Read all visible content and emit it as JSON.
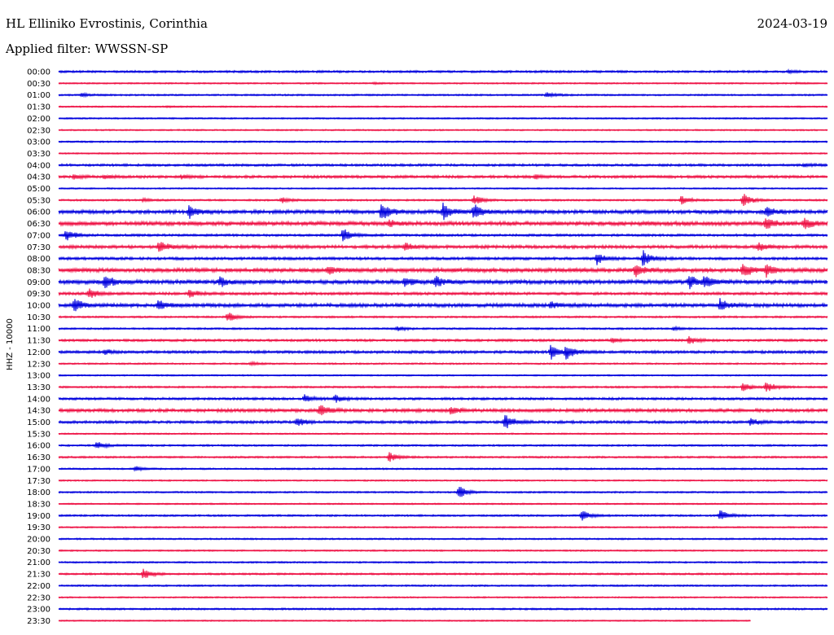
{
  "header": {
    "station": "HL Elliniko Evrostinis, Corinthia",
    "date": "2024-03-19",
    "filter": "Applied filter: WWSSN-SP"
  },
  "chart_data": {
    "type": "line",
    "title": "",
    "ylabel": "HHZ - 10000",
    "colors": [
      "#0000dd",
      "#ee1144"
    ],
    "grid": false,
    "rows": [
      {
        "label": "00:00",
        "level": 1.2,
        "events": [
          [
            0.95,
            1.2
          ]
        ]
      },
      {
        "label": "00:30",
        "level": 0.8,
        "events": [
          [
            0.41,
            0.8
          ],
          [
            0.96,
            0.6
          ]
        ]
      },
      {
        "label": "01:00",
        "level": 0.9,
        "events": [
          [
            0.03,
            2.0
          ],
          [
            0.635,
            3.5
          ]
        ]
      },
      {
        "label": "01:30",
        "level": 0.8,
        "events": [
          [
            0.14,
            0.9
          ]
        ]
      },
      {
        "label": "02:00",
        "level": 0.8,
        "events": []
      },
      {
        "label": "02:30",
        "level": 0.8,
        "events": []
      },
      {
        "label": "03:00",
        "level": 0.9,
        "events": []
      },
      {
        "label": "03:30",
        "level": 0.8,
        "events": []
      },
      {
        "label": "04:00",
        "level": 1.3,
        "events": [
          [
            0.97,
            1.8
          ]
        ]
      },
      {
        "label": "04:30",
        "level": 1.5,
        "events": [
          [
            0.02,
            2.5
          ],
          [
            0.06,
            2.0
          ],
          [
            0.16,
            2.0
          ],
          [
            0.62,
            2.0
          ]
        ]
      },
      {
        "label": "05:00",
        "level": 0.8,
        "events": []
      },
      {
        "label": "05:30",
        "level": 1.0,
        "events": [
          [
            0.11,
            2.0
          ],
          [
            0.29,
            4.0
          ],
          [
            0.54,
            7.0
          ],
          [
            0.81,
            5.0
          ],
          [
            0.89,
            10.0
          ]
        ]
      },
      {
        "label": "06:00",
        "level": 2.0,
        "events": [
          [
            0.17,
            8.0
          ],
          [
            0.42,
            12.0
          ],
          [
            0.5,
            10.0
          ],
          [
            0.54,
            9.0
          ],
          [
            0.92,
            6.0
          ]
        ]
      },
      {
        "label": "06:30",
        "level": 2.2,
        "events": [
          [
            0.43,
            4.0
          ],
          [
            0.92,
            8.0
          ],
          [
            0.97,
            7.0
          ]
        ]
      },
      {
        "label": "07:00",
        "level": 1.3,
        "events": [
          [
            0.01,
            8.0
          ],
          [
            0.37,
            9.0
          ]
        ]
      },
      {
        "label": "07:30",
        "level": 1.8,
        "events": [
          [
            0.13,
            7.0
          ],
          [
            0.45,
            5.0
          ],
          [
            0.91,
            5.0
          ]
        ]
      },
      {
        "label": "08:00",
        "level": 1.5,
        "events": [
          [
            0.7,
            9.0
          ],
          [
            0.76,
            10.0
          ]
        ]
      },
      {
        "label": "08:30",
        "level": 2.2,
        "events": [
          [
            0.35,
            5.0
          ],
          [
            0.75,
            8.0
          ],
          [
            0.89,
            10.0
          ],
          [
            0.92,
            7.0
          ]
        ]
      },
      {
        "label": "09:00",
        "level": 2.2,
        "events": [
          [
            0.06,
            9.0
          ],
          [
            0.21,
            6.0
          ],
          [
            0.45,
            6.0
          ],
          [
            0.49,
            7.0
          ],
          [
            0.82,
            8.0
          ],
          [
            0.84,
            7.0
          ]
        ]
      },
      {
        "label": "09:30",
        "level": 1.5,
        "events": [
          [
            0.04,
            6.0
          ],
          [
            0.17,
            5.0
          ]
        ]
      },
      {
        "label": "10:00",
        "level": 2.0,
        "events": [
          [
            0.02,
            8.0
          ],
          [
            0.13,
            6.0
          ],
          [
            0.64,
            4.0
          ],
          [
            0.86,
            7.0
          ]
        ]
      },
      {
        "label": "10:30",
        "level": 1.0,
        "events": [
          [
            0.22,
            6.0
          ]
        ]
      },
      {
        "label": "11:00",
        "level": 1.0,
        "events": [
          [
            0.44,
            3.0
          ],
          [
            0.8,
            2.0
          ]
        ]
      },
      {
        "label": "11:30",
        "level": 1.3,
        "events": [
          [
            0.72,
            3.0
          ],
          [
            0.82,
            5.0
          ]
        ]
      },
      {
        "label": "12:00",
        "level": 1.5,
        "events": [
          [
            0.06,
            3.0
          ],
          [
            0.64,
            9.0
          ],
          [
            0.66,
            10.0
          ]
        ]
      },
      {
        "label": "12:30",
        "level": 0.9,
        "events": [
          [
            0.25,
            2.0
          ]
        ]
      },
      {
        "label": "13:00",
        "level": 0.8,
        "events": []
      },
      {
        "label": "13:30",
        "level": 1.0,
        "events": [
          [
            0.89,
            6.0
          ],
          [
            0.92,
            7.0
          ]
        ]
      },
      {
        "label": "14:00",
        "level": 1.3,
        "events": [
          [
            0.32,
            5.0
          ],
          [
            0.36,
            5.0
          ]
        ]
      },
      {
        "label": "14:30",
        "level": 1.8,
        "events": [
          [
            0.34,
            8.0
          ],
          [
            0.51,
            5.0
          ]
        ]
      },
      {
        "label": "15:00",
        "level": 1.5,
        "events": [
          [
            0.31,
            5.0
          ],
          [
            0.58,
            10.0
          ],
          [
            0.9,
            4.0
          ]
        ]
      },
      {
        "label": "15:30",
        "level": 0.8,
        "events": []
      },
      {
        "label": "16:00",
        "level": 1.0,
        "events": [
          [
            0.05,
            5.0
          ]
        ]
      },
      {
        "label": "16:30",
        "level": 1.0,
        "events": [
          [
            0.43,
            6.0
          ]
        ]
      },
      {
        "label": "17:00",
        "level": 0.9,
        "events": [
          [
            0.1,
            3.0
          ]
        ]
      },
      {
        "label": "17:30",
        "level": 0.8,
        "events": []
      },
      {
        "label": "18:00",
        "level": 0.9,
        "events": [
          [
            0.52,
            8.0
          ]
        ]
      },
      {
        "label": "18:30",
        "level": 0.8,
        "events": []
      },
      {
        "label": "19:00",
        "level": 1.0,
        "events": [
          [
            0.68,
            7.0
          ],
          [
            0.86,
            8.0
          ]
        ]
      },
      {
        "label": "19:30",
        "level": 0.8,
        "events": []
      },
      {
        "label": "20:00",
        "level": 0.9,
        "events": []
      },
      {
        "label": "20:30",
        "level": 0.8,
        "events": []
      },
      {
        "label": "21:00",
        "level": 0.9,
        "events": []
      },
      {
        "label": "21:30",
        "level": 1.0,
        "events": [
          [
            0.11,
            7.0
          ]
        ]
      },
      {
        "label": "22:00",
        "level": 0.9,
        "events": []
      },
      {
        "label": "22:30",
        "level": 0.8,
        "events": []
      },
      {
        "label": "23:00",
        "level": 1.0,
        "events": []
      },
      {
        "label": "23:30",
        "level": 0.7,
        "events": [],
        "end": 0.9
      }
    ]
  }
}
